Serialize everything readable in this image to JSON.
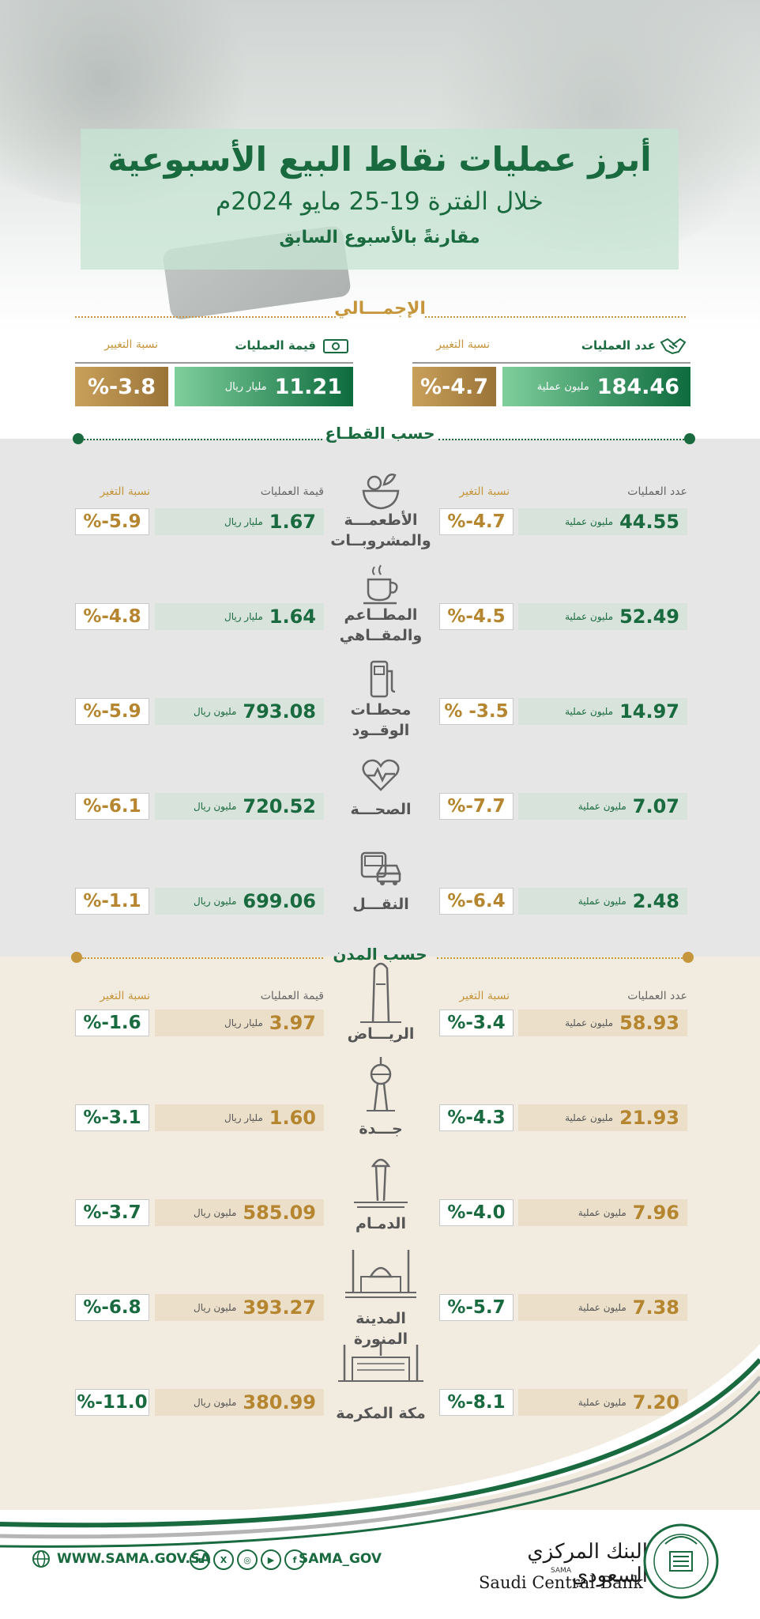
{
  "header": {
    "title": "أبرز عمليات نقاط البيع الأسبوعية",
    "period": "خلال الفترة 19-25 مايو 2024م",
    "comparison": "مقارنةً بالأسبوع السابق"
  },
  "total": {
    "title": "الإجمـــالي",
    "count_label": "عدد العمليات",
    "change_label": "نسبة التغيير",
    "value_label": "قيمة العمليات",
    "count": "184.46",
    "count_unit": "مليون عملية",
    "count_change": "%-4.7",
    "value": "11.21",
    "value_unit": "مليار ريال",
    "value_change": "%-3.8"
  },
  "sectors": {
    "title": "حسب القطـاع",
    "col_count": "عدد العمليات",
    "col_change": "نسبة التغير",
    "col_value": "قيمة العمليات",
    "col_change2": "نسبة التغير",
    "rows": [
      {
        "name1": "الأطعمـــة",
        "name2": "والمشروبــات",
        "icon": "food-icon",
        "count": "44.55",
        "count_unit": "مليون عملية",
        "count_change": "%-4.7",
        "value": "1.67",
        "value_unit": "مليار ريال",
        "value_change": "%-5.9"
      },
      {
        "name1": "المطــاعم",
        "name2": "والمقــاهي",
        "icon": "coffee-icon",
        "count": "52.49",
        "count_unit": "مليون عملية",
        "count_change": "%-4.5",
        "value": "1.64",
        "value_unit": "مليار ريال",
        "value_change": "%-4.8"
      },
      {
        "name1": "محطـات",
        "name2": "الوقــود",
        "icon": "fuel-pump-icon",
        "count": "14.97",
        "count_unit": "مليون عملية",
        "count_change": "% -3.5",
        "value": "793.08",
        "value_unit": "مليون ريال",
        "value_change": "%-5.9"
      },
      {
        "name1": "الصحـــة",
        "name2": "",
        "icon": "health-heart-icon",
        "count": "7.07",
        "count_unit": "مليون عملية",
        "count_change": "%-7.7",
        "value": "720.52",
        "value_unit": "مليون ريال",
        "value_change": "%-6.1"
      },
      {
        "name1": "النقـــل",
        "name2": "",
        "icon": "transport-icon",
        "count": "2.48",
        "count_unit": "مليون عملية",
        "count_change": "%-6.4",
        "value": "699.06",
        "value_unit": "مليون ريال",
        "value_change": "%-1.1"
      }
    ]
  },
  "cities": {
    "title": "حسب المدن",
    "col_count": "عدد العمليات",
    "col_change": "نسبة التغير",
    "col_value": "قيمة العمليات",
    "col_change2": "نسبة التغير",
    "rows": [
      {
        "name": "الريـــاض",
        "icon": "riyadh-tower-icon",
        "count": "58.93",
        "count_unit": "مليون عملية",
        "count_change": "%-3.4",
        "value": "3.97",
        "value_unit": "مليار ريال",
        "value_change": "%-1.6"
      },
      {
        "name": "جـــدة",
        "icon": "jeddah-tower-icon",
        "count": "21.93",
        "count_unit": "مليون عملية",
        "count_change": "%-4.3",
        "value": "1.60",
        "value_unit": "مليار ريال",
        "value_change": "%-3.1"
      },
      {
        "name": "الدمـام",
        "icon": "dammam-tower-icon",
        "count": "7.96",
        "count_unit": "مليون عملية",
        "count_change": "%-4.0",
        "value": "585.09",
        "value_unit": "مليون ريال",
        "value_change": "%-3.7"
      },
      {
        "name": "المدينة المنورة",
        "icon": "madinah-mosque-icon",
        "count": "7.38",
        "count_unit": "مليون عملية",
        "count_change": "%-5.7",
        "value": "393.27",
        "value_unit": "مليون ريال",
        "value_change": "%-6.8"
      },
      {
        "name": "مكة المكرمة",
        "icon": "makkah-mosque-icon",
        "count": "7.20",
        "count_unit": "مليون عملية",
        "count_change": "%-8.1",
        "value": "380.99",
        "value_unit": "مليون ريال",
        "value_change": "%-11.0"
      }
    ]
  },
  "footer": {
    "website": "WWW.SAMA.GOV.SA",
    "handle": "SAMA_GOV",
    "bank_ar": "البنك المركزي السعودي",
    "bank_sama": "SAMA",
    "bank_en": "Saudi Central Bank"
  },
  "colors": {
    "green": "#1a6a3f",
    "gold": "#c5963c",
    "sector_bg": "#e6e6e6",
    "city_bg": "#f2ece0"
  }
}
